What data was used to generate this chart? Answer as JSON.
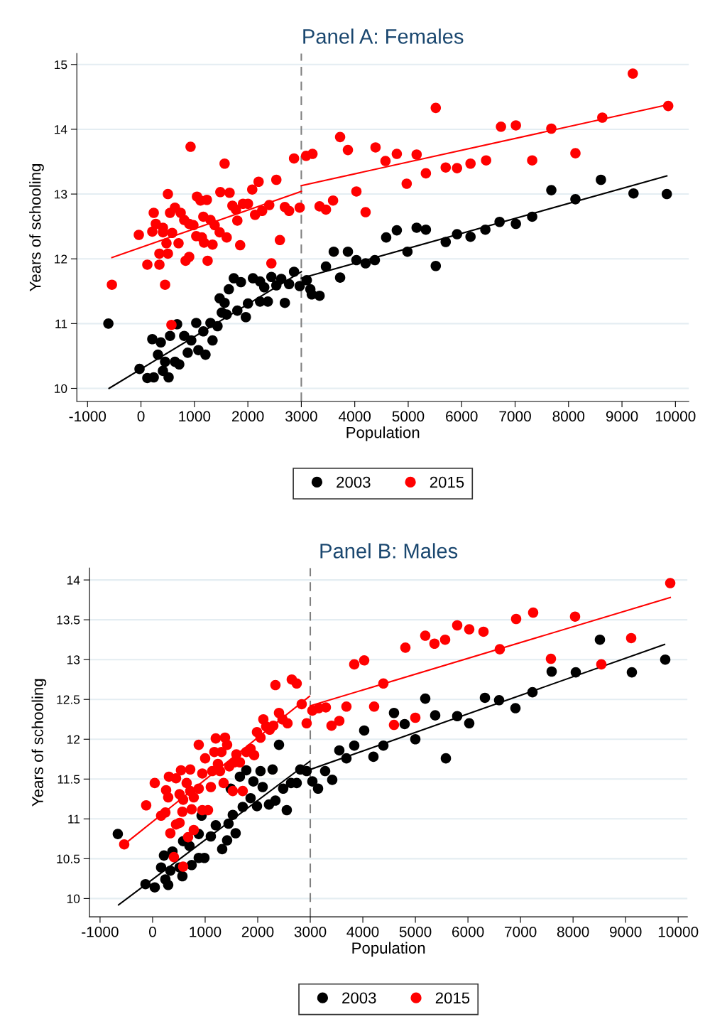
{
  "chart_data": [
    {
      "type": "scatter",
      "title": "Panel A: Females",
      "xlabel": "Population",
      "ylabel": "Years of schooling",
      "xlim": [
        -1200,
        10250
      ],
      "ylim": [
        9.8,
        15.17
      ],
      "xticks": [
        -1000,
        0,
        1000,
        2000,
        3000,
        4000,
        5000,
        6000,
        7000,
        8000,
        9000,
        10000
      ],
      "yticks": [
        10,
        11,
        12,
        13,
        14,
        15
      ],
      "grid": "y",
      "legend": "bottom",
      "marker": "circle",
      "ref_lines": [
        {
          "axis": "x",
          "value": 3000,
          "color": "#808080",
          "line_style": "dashed"
        }
      ],
      "series": [
        {
          "name": "2003",
          "color": "#000000",
          "x": [
            -610,
            -27,
            119,
            239,
            517,
            212,
            371,
            544,
            676,
            318,
            451,
            411,
            636,
            716,
            809,
            875,
            941,
            1034,
            1074,
            1167,
            1300,
            1339,
            1432,
            1207,
            1472,
            1565,
            1512,
            1604,
            1644,
            1737,
            1870,
            1803,
            1962,
            2002,
            2095,
            2228,
            2307,
            2228,
            2374,
            2440,
            2533,
            2625,
            2692,
            2771,
            2864,
            2970,
            3103,
            3169,
            3196,
            3342,
            3461,
            3607,
            3726,
            3872,
            4031,
            4203,
            4376,
            4588,
            4787,
            4986,
            5158,
            5331,
            5516,
            5702,
            5914,
            6166,
            6444,
            6710,
            7015,
            7320,
            7678,
            8129,
            8606,
            9216,
            9839
          ],
          "values": [
            11.0,
            10.3,
            10.16,
            10.17,
            10.17,
            10.76,
            10.71,
            10.81,
            10.99,
            10.52,
            10.41,
            10.27,
            10.41,
            10.37,
            10.81,
            10.55,
            10.74,
            11.01,
            10.59,
            10.88,
            11.01,
            10.74,
            10.96,
            10.52,
            11.39,
            11.32,
            11.17,
            11.14,
            11.53,
            11.7,
            11.64,
            11.2,
            11.1,
            11.31,
            11.7,
            11.65,
            11.56,
            11.34,
            11.34,
            11.72,
            11.59,
            11.69,
            11.32,
            11.61,
            11.8,
            11.58,
            11.67,
            11.53,
            11.45,
            11.43,
            11.88,
            12.11,
            11.71,
            12.11,
            11.98,
            11.93,
            11.98,
            12.33,
            12.44,
            12.11,
            12.48,
            12.45,
            11.89,
            12.26,
            12.38,
            12.34,
            12.45,
            12.57,
            12.54,
            12.65,
            13.06,
            12.92,
            13.22,
            13.01,
            13.0
          ]
        },
        {
          "name": "2015",
          "color": "#ff0000",
          "x": [
            -544,
            451,
            570,
            -40,
            119,
            345,
            212,
            278,
            239,
            411,
            411,
            345,
            504,
            477,
            504,
            544,
            636,
            583,
            703,
            743,
            809,
            835,
            902,
            928,
            902,
            981,
            1034,
            1048,
            1114,
            1233,
            1167,
            1140,
            1247,
            1180,
            1339,
            1300,
            1379,
            1472,
            1604,
            1485,
            1565,
            1658,
            1711,
            1777,
            1803,
            1856,
            1909,
            2002,
            2082,
            2135,
            2201,
            2267,
            2400,
            2440,
            2533,
            2599,
            2692,
            2771,
            2864,
            2970,
            3090,
            3209,
            3342,
            3461,
            3594,
            3726,
            3872,
            4031,
            4203,
            4389,
            4575,
            4787,
            4972,
            5158,
            5331,
            5516,
            5702,
            5914,
            6166,
            6458,
            6736,
            7015,
            7320,
            7678,
            8129,
            8632,
            9203,
            9865
          ],
          "values": [
            11.6,
            11.6,
            10.98,
            12.37,
            11.91,
            11.91,
            12.42,
            12.54,
            12.71,
            12.48,
            12.41,
            12.08,
            12.08,
            12.24,
            13.0,
            12.71,
            12.79,
            12.4,
            12.24,
            12.71,
            12.6,
            11.97,
            12.03,
            13.73,
            12.54,
            12.52,
            12.35,
            12.96,
            12.9,
            12.91,
            12.65,
            12.33,
            11.97,
            12.25,
            12.22,
            12.6,
            12.52,
            12.41,
            12.33,
            13.03,
            13.47,
            13.02,
            12.82,
            12.76,
            12.59,
            12.21,
            12.85,
            12.85,
            13.07,
            12.68,
            13.19,
            12.74,
            12.83,
            11.93,
            13.22,
            12.29,
            12.8,
            12.74,
            13.55,
            12.79,
            13.59,
            13.62,
            12.81,
            12.76,
            12.9,
            13.88,
            13.68,
            13.04,
            12.72,
            13.72,
            13.51,
            13.62,
            13.16,
            13.61,
            13.32,
            14.33,
            13.41,
            13.4,
            13.47,
            13.52,
            14.04,
            14.06,
            13.52,
            14.01,
            13.63,
            14.18,
            14.86,
            14.36
          ]
        },
        {
          "type": "line",
          "color": "#000000",
          "marker": "none",
          "x": [
            -597,
            3000
          ],
          "values": [
            10.0,
            11.8
          ]
        },
        {
          "type": "line",
          "color": "#000000",
          "marker": "none",
          "x": [
            3000,
            9839
          ],
          "values": [
            11.7,
            13.28
          ]
        },
        {
          "type": "line",
          "color": "#ff0000",
          "marker": "none",
          "x": [
            -544,
            3000
          ],
          "values": [
            12.02,
            13.04
          ]
        },
        {
          "type": "line",
          "color": "#ff0000",
          "marker": "none",
          "x": [
            3000,
            9865
          ],
          "values": [
            13.13,
            14.38
          ]
        }
      ]
    },
    {
      "type": "scatter",
      "title": "Panel B: Males",
      "xlabel": "Population",
      "ylabel": "Years of schooling",
      "xlim": [
        -1200,
        10175
      ],
      "ylim": [
        9.77,
        14.15
      ],
      "xticks": [
        -1000,
        0,
        1000,
        2000,
        3000,
        4000,
        5000,
        6000,
        7000,
        8000,
        9000,
        10000
      ],
      "yticks": [
        10,
        10.5,
        11,
        11.5,
        12,
        12.5,
        13,
        13.5,
        14
      ],
      "grid": "y",
      "legend": "bottom",
      "marker": "circle",
      "ref_lines": [
        {
          "axis": "x",
          "value": 3000,
          "color": "#808080",
          "line_style": "dashed"
        }
      ],
      "series": [
        {
          "name": "2003",
          "color": "#000000",
          "x": [
            -662,
            -135,
            41,
            297,
            243,
            162,
            216,
            378,
            338,
            567,
            513,
            581,
            702,
            743,
            878,
            986,
            932,
            878,
            1108,
            1202,
            1324,
            1418,
            1445,
            1526,
            1580,
            1486,
            1661,
            1783,
            1715,
            1864,
            1986,
            1918,
            2053,
            2094,
            2215,
            2283,
            2337,
            2405,
            2485,
            2553,
            2634,
            2742,
            2810,
            2931,
            3040,
            3148,
            3283,
            3418,
            3553,
            3688,
            3837,
            4026,
            4202,
            4391,
            4593,
            4796,
            4999,
            5188,
            5377,
            5580,
            5796,
            6025,
            6323,
            6593,
            6904,
            7228,
            7593,
            8052,
            8511,
            9119,
            9754
          ],
          "values": [
            10.81,
            10.18,
            10.14,
            10.17,
            10.24,
            10.39,
            10.54,
            10.59,
            10.35,
            10.28,
            10.39,
            10.72,
            10.66,
            10.42,
            10.51,
            10.51,
            11.04,
            10.81,
            10.78,
            10.92,
            10.62,
            10.73,
            10.94,
            11.05,
            10.82,
            11.38,
            11.53,
            11.61,
            11.15,
            11.26,
            11.16,
            11.47,
            11.6,
            11.4,
            11.18,
            11.62,
            11.23,
            11.93,
            11.38,
            11.11,
            11.45,
            11.45,
            11.62,
            11.6,
            11.47,
            11.38,
            11.6,
            11.49,
            11.86,
            11.76,
            11.92,
            12.11,
            11.78,
            11.92,
            12.33,
            12.19,
            12.0,
            12.51,
            12.3,
            11.76,
            12.29,
            12.2,
            12.52,
            12.49,
            12.39,
            12.59,
            12.85,
            12.84,
            13.25,
            12.84,
            13.0
          ]
        },
        {
          "name": "2015",
          "color": "#ff0000",
          "x": [
            -540,
            -122,
            41,
            162,
            243,
            257,
            297,
            311,
            446,
            338,
            405,
            446,
            513,
            581,
            540,
            513,
            581,
            567,
            648,
            675,
            716,
            716,
            743,
            783,
            783,
            878,
            878,
            946,
            946,
            1054,
            1000,
            1108,
            1135,
            1175,
            1202,
            1243,
            1283,
            1310,
            1351,
            1378,
            1418,
            1459,
            1526,
            1553,
            1594,
            1661,
            1715,
            1783,
            1864,
            1932,
            1986,
            2053,
            2107,
            2161,
            2229,
            2297,
            2337,
            2405,
            2472,
            2567,
            2648,
            2742,
            2837,
            2931,
            3040,
            3161,
            3296,
            3404,
            3553,
            3688,
            3837,
            4026,
            4215,
            4391,
            4593,
            4810,
            4999,
            5188,
            5363,
            5566,
            5796,
            6025,
            6296,
            6606,
            6917,
            7241,
            7579,
            8038,
            8538,
            9106,
            9849
          ],
          "values": [
            10.68,
            11.17,
            11.45,
            11.04,
            11.08,
            11.36,
            11.27,
            11.53,
            11.51,
            10.82,
            10.52,
            10.93,
            10.95,
            10.4,
            11.61,
            11.31,
            11.24,
            11.09,
            11.45,
            10.77,
            11.62,
            11.35,
            11.12,
            10.86,
            11.27,
            11.93,
            11.38,
            11.57,
            11.11,
            11.11,
            11.76,
            11.4,
            11.6,
            11.84,
            12.01,
            11.69,
            11.6,
            11.84,
            11.45,
            12.02,
            11.93,
            11.66,
            11.35,
            11.71,
            11.81,
            11.71,
            11.35,
            11.84,
            11.88,
            11.8,
            12.09,
            12.02,
            12.25,
            12.16,
            12.12,
            12.17,
            12.68,
            12.33,
            12.25,
            12.2,
            12.75,
            12.7,
            12.44,
            12.2,
            12.36,
            12.39,
            12.4,
            12.17,
            12.23,
            12.41,
            12.94,
            12.99,
            12.41,
            12.7,
            12.18,
            13.15,
            12.27,
            13.3,
            13.2,
            13.25,
            13.43,
            13.38,
            13.35,
            13.13,
            13.51,
            13.59,
            13.01,
            13.54,
            12.94,
            13.27,
            13.96
          ]
        },
        {
          "type": "line",
          "color": "#000000",
          "marker": "none",
          "x": [
            -648,
            2986
          ],
          "values": [
            9.92,
            11.72
          ]
        },
        {
          "type": "line",
          "color": "#000000",
          "marker": "none",
          "x": [
            2999,
            9741
          ],
          "values": [
            11.62,
            13.19
          ]
        },
        {
          "type": "line",
          "color": "#ff0000",
          "marker": "none",
          "x": [
            -540,
            2986
          ],
          "values": [
            10.68,
            12.54
          ]
        },
        {
          "type": "line",
          "color": "#ff0000",
          "marker": "none",
          "x": [
            2999,
            9849
          ],
          "values": [
            12.42,
            13.78
          ]
        }
      ]
    }
  ]
}
